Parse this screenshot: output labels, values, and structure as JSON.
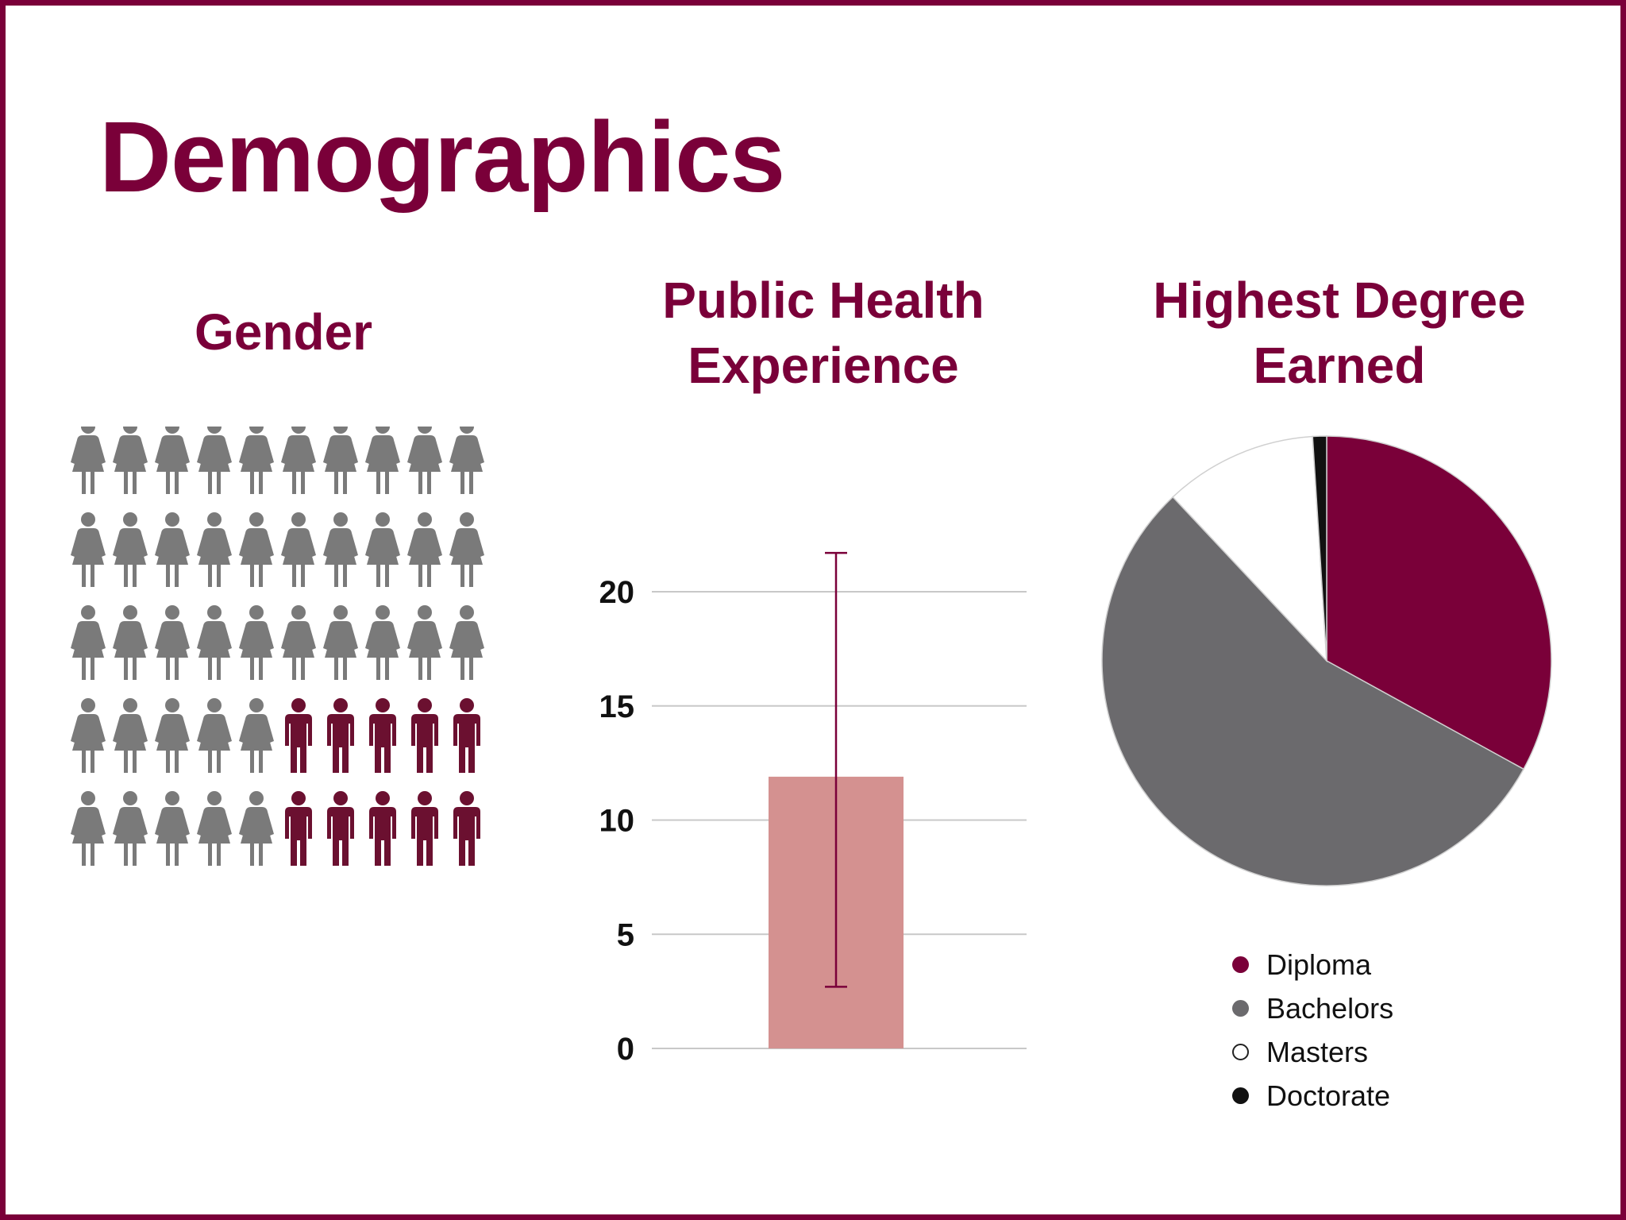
{
  "slide": {
    "title": "Demographics",
    "border_color": "#7a0039"
  },
  "gender": {
    "title": "Gender",
    "icons": {
      "female": "female-person-icon",
      "male": "male-person-icon"
    },
    "female_color": "#7a7a7a",
    "male_color": "#6b1030",
    "grid_rows": [
      [
        "female",
        "female",
        "female",
        "female",
        "female",
        "female",
        "female",
        "female",
        "female",
        "female"
      ],
      [
        "female",
        "female",
        "female",
        "female",
        "female",
        "female",
        "female",
        "female",
        "female",
        "female"
      ],
      [
        "female",
        "female",
        "female",
        "female",
        "female",
        "female",
        "female",
        "female",
        "female",
        "female"
      ],
      [
        "female",
        "female",
        "female",
        "female",
        "female",
        "male",
        "male",
        "male",
        "male",
        "male"
      ],
      [
        "female",
        "female",
        "female",
        "female",
        "female",
        "male",
        "male",
        "male",
        "male",
        "male"
      ]
    ]
  },
  "experience": {
    "title_lines": [
      "Public Health",
      "Experience"
    ]
  },
  "degree": {
    "title_lines": [
      "Highest Degree",
      "Earned"
    ]
  },
  "chart_data": [
    {
      "type": "bar",
      "categories": [
        ""
      ],
      "values": [
        11.9
      ],
      "error_bars": {
        "lower": [
          2.7
        ],
        "upper": [
          21.7
        ]
      },
      "ylim": [
        0,
        22
      ],
      "yticks": [
        "0",
        "5",
        "10",
        "15",
        "20"
      ],
      "grid": true,
      "bar_color": "#d49190",
      "error_color": "#7a0039"
    },
    {
      "type": "pie",
      "labels": [
        "Diploma",
        "Bachelors",
        "Masters",
        "Doctorate"
      ],
      "values": [
        33,
        55,
        11,
        1
      ],
      "colors": [
        "#7a0039",
        "#6b6a6d",
        "#ffffff",
        "#111111"
      ],
      "legend": "bottom"
    }
  ]
}
